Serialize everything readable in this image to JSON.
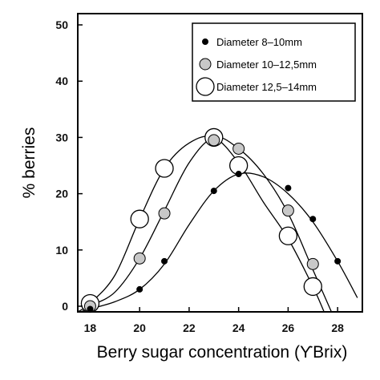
{
  "chart_data": {
    "type": "scatter",
    "xlabel": "Berry sugar concentration (ϒBrix)",
    "ylabel": "% berries",
    "xlim": [
      17.5,
      29.0
    ],
    "ylim": [
      -1,
      52
    ],
    "xticks": [
      18,
      20,
      22,
      24,
      26,
      28
    ],
    "yticks": [
      0,
      10,
      20,
      30,
      40,
      50
    ],
    "grid": false,
    "legend_position": "top-right",
    "series": [
      {
        "name": "Diameter 8–10mm",
        "marker": "small-black",
        "x": [
          18,
          20,
          21,
          23,
          24,
          26,
          27,
          28
        ],
        "y": [
          -0.5,
          3,
          8,
          20.5,
          23.5,
          21,
          15.5,
          8
        ]
      },
      {
        "name": "Diameter 10–12,5mm",
        "marker": "medium-gray",
        "x": [
          18,
          20,
          21,
          23,
          24,
          26,
          27
        ],
        "y": [
          0,
          8.5,
          16.5,
          29.5,
          28,
          17,
          7.5
        ]
      },
      {
        "name": "Diameter 12,5–14mm",
        "marker": "large-white",
        "x": [
          18,
          20,
          21,
          23,
          24,
          26,
          27
        ],
        "y": [
          0.5,
          15.5,
          24.5,
          30,
          25,
          12.5,
          3.5
        ]
      }
    ],
    "fitted_curves": [
      {
        "series": "Diameter 8–10mm",
        "x": [
          17.5,
          18,
          19,
          20,
          21,
          22,
          23,
          24,
          25,
          26,
          27,
          28,
          28.8
        ],
        "y": [
          -1.5,
          -0.5,
          0.8,
          3.0,
          7.5,
          14.5,
          20.5,
          23.5,
          23.0,
          20.0,
          15.0,
          8.0,
          1.5
        ]
      },
      {
        "series": "Diameter 10–12,5mm",
        "x": [
          17.5,
          18,
          19,
          20,
          21,
          22,
          23,
          24,
          25,
          26,
          27,
          27.8
        ],
        "y": [
          -1.5,
          0.0,
          2.5,
          8.5,
          17.0,
          25.5,
          30.0,
          28.0,
          23.5,
          16.5,
          6.5,
          -1.5
        ]
      },
      {
        "series": "Diameter 12,5–14mm",
        "x": [
          17.5,
          18,
          19,
          20,
          21,
          22,
          23,
          24,
          25,
          26,
          27,
          27.5
        ],
        "y": [
          -1.0,
          0.5,
          5.5,
          15.5,
          24.5,
          29.0,
          30.0,
          25.5,
          18.5,
          12.0,
          3.5,
          -1.5
        ]
      }
    ]
  }
}
